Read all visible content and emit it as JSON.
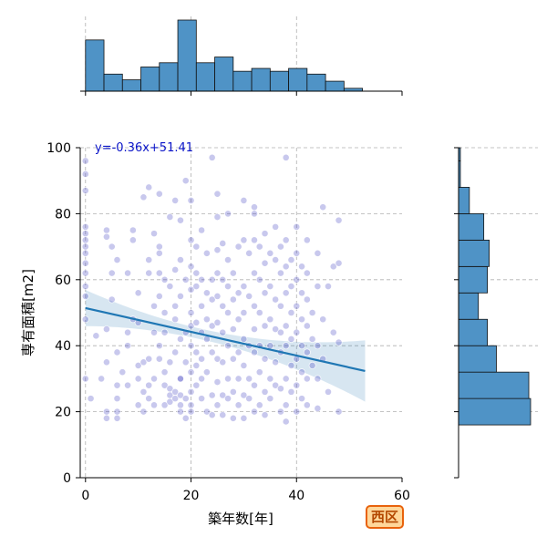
{
  "chart_data": {
    "type": "scatter",
    "title": "",
    "xlabel": "築年数[年]",
    "ylabel": "専有面積[m2]",
    "xlim": [
      -1,
      60
    ],
    "ylim": [
      0,
      100
    ],
    "xticks": [
      0,
      20,
      40,
      60
    ],
    "yticks": [
      0,
      20,
      40,
      60,
      80,
      100
    ],
    "grid": true,
    "point_color": "#3a3abf",
    "line_color": "#1f77b4",
    "bar_color": "#4f93c6",
    "regression": {
      "label": "y=-0.36x+51.41",
      "label_color": "#0a14c8",
      "slope": -0.36,
      "intercept": 51.41,
      "x_range": [
        0,
        53
      ]
    },
    "x_histogram": {
      "bin_edges": [
        0,
        3.5,
        7,
        10.5,
        14,
        17.5,
        21,
        24.5,
        28,
        31.5,
        35,
        38.5,
        42,
        45.5,
        49,
        52.5,
        56,
        59.5
      ],
      "counts": [
        36,
        12,
        8,
        17,
        20,
        50,
        20,
        24,
        14,
        16,
        14,
        16,
        12,
        7,
        2,
        0,
        0
      ]
    },
    "y_histogram": {
      "bin_edges": [
        16,
        24,
        32,
        40,
        48,
        56,
        64,
        72,
        80,
        88,
        96,
        100
      ],
      "counts": [
        40,
        39,
        21,
        16,
        11,
        16,
        17,
        14,
        6,
        1,
        1
      ]
    },
    "points": [
      [
        0,
        96
      ],
      [
        0,
        92
      ],
      [
        0,
        87
      ],
      [
        0,
        76
      ],
      [
        0,
        74
      ],
      [
        0,
        72
      ],
      [
        0,
        70
      ],
      [
        0,
        68
      ],
      [
        0,
        65
      ],
      [
        0,
        62
      ],
      [
        0,
        58
      ],
      [
        0,
        55
      ],
      [
        0,
        48
      ],
      [
        0,
        30
      ],
      [
        1,
        24
      ],
      [
        2,
        43
      ],
      [
        3,
        30
      ],
      [
        4,
        18
      ],
      [
        4,
        20
      ],
      [
        4,
        75
      ],
      [
        4,
        73
      ],
      [
        4,
        45
      ],
      [
        4,
        35
      ],
      [
        5,
        54
      ],
      [
        5,
        62
      ],
      [
        5,
        70
      ],
      [
        6,
        20
      ],
      [
        6,
        18
      ],
      [
        6,
        24
      ],
      [
        6,
        66
      ],
      [
        6,
        38
      ],
      [
        6,
        28
      ],
      [
        7,
        32
      ],
      [
        8,
        28
      ],
      [
        8,
        44
      ],
      [
        8,
        40
      ],
      [
        8,
        62
      ],
      [
        9,
        48
      ],
      [
        9,
        75
      ],
      [
        9,
        72
      ],
      [
        10,
        47
      ],
      [
        10,
        56
      ],
      [
        10,
        22
      ],
      [
        10,
        30
      ],
      [
        10,
        34
      ],
      [
        11,
        35
      ],
      [
        11,
        20
      ],
      [
        11,
        26
      ],
      [
        11,
        85
      ],
      [
        12,
        88
      ],
      [
        12,
        66
      ],
      [
        12,
        62
      ],
      [
        12,
        36
      ],
      [
        12,
        28
      ],
      [
        12,
        24
      ],
      [
        13,
        74
      ],
      [
        13,
        52
      ],
      [
        13,
        44
      ],
      [
        13,
        30
      ],
      [
        13,
        22
      ],
      [
        14,
        86
      ],
      [
        14,
        70
      ],
      [
        14,
        68
      ],
      [
        14,
        62
      ],
      [
        14,
        55
      ],
      [
        14,
        40
      ],
      [
        14,
        36
      ],
      [
        15,
        32
      ],
      [
        15,
        28
      ],
      [
        15,
        22
      ],
      [
        15,
        44
      ],
      [
        15,
        50
      ],
      [
        15,
        60
      ],
      [
        16,
        25
      ],
      [
        16,
        23
      ],
      [
        16,
        58
      ],
      [
        16,
        79
      ],
      [
        16,
        27
      ],
      [
        16,
        35
      ],
      [
        17,
        24
      ],
      [
        17,
        26
      ],
      [
        17,
        38
      ],
      [
        17,
        48
      ],
      [
        17,
        52
      ],
      [
        17,
        63
      ],
      [
        17,
        84
      ],
      [
        18,
        20
      ],
      [
        18,
        22
      ],
      [
        18,
        30
      ],
      [
        18,
        42
      ],
      [
        18,
        55
      ],
      [
        18,
        78
      ],
      [
        18,
        66
      ],
      [
        18,
        25
      ],
      [
        18,
        30
      ],
      [
        19,
        90
      ],
      [
        19,
        60
      ],
      [
        19,
        44
      ],
      [
        19,
        35
      ],
      [
        19,
        24
      ],
      [
        19,
        18
      ],
      [
        20,
        84
      ],
      [
        20,
        72
      ],
      [
        20,
        64
      ],
      [
        20,
        57
      ],
      [
        20,
        50
      ],
      [
        20,
        46
      ],
      [
        20,
        40
      ],
      [
        20,
        32
      ],
      [
        20,
        26
      ],
      [
        20,
        22
      ],
      [
        20,
        20
      ],
      [
        21,
        70
      ],
      [
        21,
        62
      ],
      [
        21,
        58
      ],
      [
        21,
        47
      ],
      [
        21,
        38
      ],
      [
        21,
        34
      ],
      [
        21,
        28
      ],
      [
        22,
        75
      ],
      [
        22,
        60
      ],
      [
        22,
        52
      ],
      [
        22,
        44
      ],
      [
        22,
        36
      ],
      [
        22,
        30
      ],
      [
        22,
        24
      ],
      [
        23,
        68
      ],
      [
        23,
        56
      ],
      [
        23,
        48
      ],
      [
        23,
        42
      ],
      [
        23,
        32
      ],
      [
        23,
        20
      ],
      [
        24,
        97
      ],
      [
        24,
        60
      ],
      [
        24,
        54
      ],
      [
        24,
        46
      ],
      [
        24,
        38
      ],
      [
        24,
        25
      ],
      [
        24,
        19
      ],
      [
        25,
        86
      ],
      [
        25,
        79
      ],
      [
        25,
        69
      ],
      [
        25,
        62
      ],
      [
        25,
        55
      ],
      [
        25,
        47
      ],
      [
        25,
        36
      ],
      [
        25,
        29
      ],
      [
        25,
        22
      ],
      [
        26,
        71
      ],
      [
        26,
        60
      ],
      [
        26,
        52
      ],
      [
        26,
        44
      ],
      [
        26,
        35
      ],
      [
        26,
        25
      ],
      [
        26,
        19
      ],
      [
        27,
        80
      ],
      [
        27,
        66
      ],
      [
        27,
        58
      ],
      [
        27,
        50
      ],
      [
        27,
        40
      ],
      [
        27,
        30
      ],
      [
        27,
        24
      ],
      [
        28,
        62
      ],
      [
        28,
        54
      ],
      [
        28,
        45
      ],
      [
        28,
        36
      ],
      [
        28,
        26
      ],
      [
        28,
        18
      ],
      [
        29,
        70
      ],
      [
        29,
        56
      ],
      [
        29,
        48
      ],
      [
        29,
        38
      ],
      [
        29,
        30
      ],
      [
        29,
        22
      ],
      [
        30,
        84
      ],
      [
        30,
        72
      ],
      [
        30,
        58
      ],
      [
        30,
        50
      ],
      [
        30,
        42
      ],
      [
        30,
        34
      ],
      [
        30,
        25
      ],
      [
        30,
        18
      ],
      [
        31,
        68
      ],
      [
        31,
        55
      ],
      [
        31,
        40
      ],
      [
        31,
        30
      ],
      [
        31,
        24
      ],
      [
        32,
        82
      ],
      [
        32,
        80
      ],
      [
        32,
        72
      ],
      [
        32,
        62
      ],
      [
        32,
        52
      ],
      [
        32,
        45
      ],
      [
        32,
        38
      ],
      [
        32,
        28
      ],
      [
        32,
        20
      ],
      [
        33,
        70
      ],
      [
        33,
        60
      ],
      [
        33,
        50
      ],
      [
        33,
        40
      ],
      [
        33,
        32
      ],
      [
        33,
        22
      ],
      [
        34,
        74
      ],
      [
        34,
        65
      ],
      [
        34,
        56
      ],
      [
        34,
        46
      ],
      [
        34,
        36
      ],
      [
        34,
        26
      ],
      [
        34,
        19
      ],
      [
        35,
        68
      ],
      [
        35,
        58
      ],
      [
        35,
        48
      ],
      [
        35,
        40
      ],
      [
        35,
        30
      ],
      [
        35,
        24
      ],
      [
        36,
        76
      ],
      [
        36,
        66
      ],
      [
        36,
        54
      ],
      [
        36,
        45
      ],
      [
        36,
        35
      ],
      [
        36,
        28
      ],
      [
        37,
        70
      ],
      [
        37,
        62
      ],
      [
        37,
        52
      ],
      [
        37,
        44
      ],
      [
        37,
        38
      ],
      [
        37,
        27
      ],
      [
        37,
        20
      ],
      [
        38,
        97
      ],
      [
        38,
        72
      ],
      [
        38,
        64
      ],
      [
        38,
        56
      ],
      [
        38,
        46
      ],
      [
        38,
        40
      ],
      [
        38,
        30
      ],
      [
        38,
        22
      ],
      [
        38,
        17
      ],
      [
        39,
        66
      ],
      [
        39,
        58
      ],
      [
        39,
        50
      ],
      [
        39,
        42
      ],
      [
        39,
        34
      ],
      [
        39,
        26
      ],
      [
        40,
        76
      ],
      [
        40,
        68
      ],
      [
        40,
        60
      ],
      [
        40,
        52
      ],
      [
        40,
        44
      ],
      [
        40,
        36
      ],
      [
        40,
        28
      ],
      [
        40,
        20
      ],
      [
        41,
        64
      ],
      [
        41,
        56
      ],
      [
        41,
        48
      ],
      [
        41,
        40
      ],
      [
        41,
        32
      ],
      [
        41,
        24
      ],
      [
        42,
        72
      ],
      [
        42,
        62
      ],
      [
        42,
        54
      ],
      [
        42,
        46
      ],
      [
        42,
        38
      ],
      [
        42,
        30
      ],
      [
        42,
        22
      ],
      [
        43,
        50
      ],
      [
        43,
        42
      ],
      [
        43,
        34
      ],
      [
        44,
        68
      ],
      [
        44,
        58
      ],
      [
        44,
        40
      ],
      [
        44,
        30
      ],
      [
        44,
        21
      ],
      [
        45,
        82
      ],
      [
        45,
        48
      ],
      [
        45,
        36
      ],
      [
        46,
        58
      ],
      [
        46,
        26
      ],
      [
        47,
        64
      ],
      [
        47,
        44
      ],
      [
        48,
        78
      ],
      [
        48,
        65
      ],
      [
        48,
        41
      ],
      [
        48,
        20
      ]
    ]
  }
}
